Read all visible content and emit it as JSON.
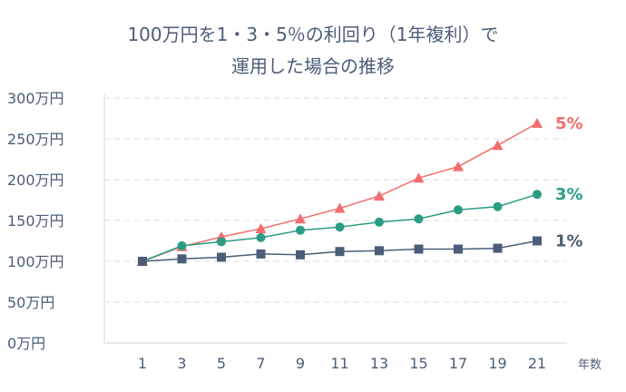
{
  "title_lines": [
    "100万円を1・3・5％の利回り（1年複利）で",
    "運用した場合の推移"
  ],
  "colors": {
    "text": "#4b5d78",
    "grid": "#d9dee6",
    "axis": "#cfd5de"
  },
  "chart_data": {
    "type": "line",
    "title": "100万円を1・3・5％の利回り（1年複利）で運用した場合の推移",
    "xlabel": "年数",
    "ylabel": "",
    "x": [
      1,
      3,
      5,
      7,
      9,
      11,
      13,
      15,
      17,
      19,
      21
    ],
    "y_ticks": [
      "0万円",
      "50万円",
      "100万円",
      "150万円",
      "200万円",
      "250万円",
      "300万円"
    ],
    "ylim": [
      0,
      300
    ],
    "grid": true,
    "series": [
      {
        "name": "5%",
        "color": "#f26d6d",
        "marker": "triangle",
        "values": [
          100,
          118,
          130,
          140,
          152,
          165,
          180,
          202,
          216,
          242,
          269
        ]
      },
      {
        "name": "3%",
        "color": "#2a9d84",
        "marker": "circle",
        "values": [
          100,
          119,
          124,
          129,
          138,
          142,
          148,
          152,
          163,
          167,
          182
        ]
      },
      {
        "name": "1%",
        "color": "#4b5d78",
        "marker": "square",
        "values": [
          100,
          103,
          105,
          109,
          108,
          112,
          113,
          115,
          115,
          116,
          125
        ]
      }
    ]
  }
}
